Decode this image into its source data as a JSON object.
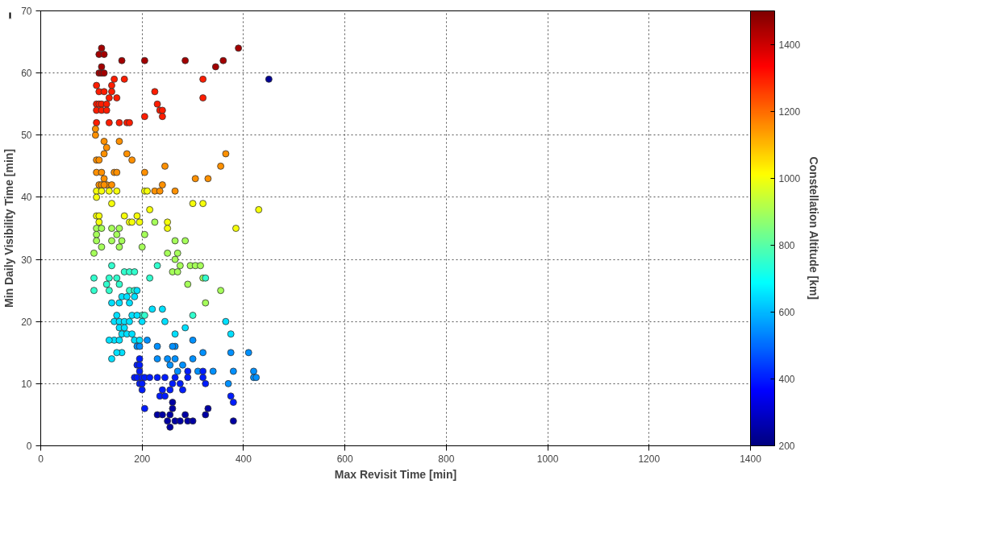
{
  "chart_data": {
    "type": "scatter",
    "xlabel": "Max Revisit Time [min]",
    "ylabel": "Min Daily Visibility Time [min]",
    "clabel": "Constellation Altitude [km]",
    "xlim": [
      0,
      1400
    ],
    "xticks": [
      0,
      200,
      400,
      600,
      800,
      1000,
      1200,
      1400
    ],
    "ylim": [
      0,
      70
    ],
    "yticks": [
      0,
      10,
      20,
      30,
      40,
      50,
      60,
      70
    ],
    "clim": [
      200,
      1500
    ],
    "cticks": [
      200,
      400,
      600,
      800,
      1000,
      1200,
      1400
    ],
    "grid": true,
    "marker": "circle",
    "series": [
      {
        "x": [
          115,
          120,
          125,
          115,
          120,
          125,
          160,
          205,
          285,
          360,
          390,
          345,
          120,
          450,
          110,
          115,
          125,
          135,
          145,
          140,
          140,
          165,
          110,
          115,
          120,
          130,
          110,
          120,
          130,
          150,
          110,
          135,
          155,
          170,
          175,
          205,
          225,
          230,
          235,
          240,
          240,
          320,
          320,
          108,
          108,
          125,
          155,
          130,
          170,
          180,
          110,
          115,
          125,
          110,
          120,
          145,
          150,
          205,
          365,
          355,
          245,
          305,
          330,
          125,
          130,
          115,
          120,
          125,
          140,
          240,
          225,
          235,
          265,
          205,
          110,
          120,
          135,
          150,
          210,
          110,
          140,
          300,
          320,
          430,
          110,
          115,
          165,
          190,
          195,
          215,
          250,
          250,
          385,
          115,
          175,
          180,
          225,
          110,
          120,
          140,
          155,
          110,
          150,
          205,
          110,
          140,
          160,
          265,
          285,
          120,
          155,
          200,
          270,
          105,
          250,
          265,
          275,
          295,
          305,
          315,
          260,
          270,
          290,
          320,
          355,
          325,
          105,
          105,
          140,
          135,
          150,
          130,
          135,
          155,
          165,
          175,
          185,
          175,
          185,
          200,
          205,
          230,
          215,
          300,
          325,
          140,
          155,
          160,
          175,
          170,
          185,
          190,
          150,
          145,
          155,
          165,
          175,
          180,
          190,
          200,
          155,
          165,
          160,
          170,
          180,
          145,
          135,
          155,
          185,
          195,
          140,
          160,
          150,
          220,
          240,
          245,
          285,
          265,
          365,
          375,
          190,
          195,
          210,
          230,
          265,
          260,
          300,
          320,
          375,
          230,
          250,
          265,
          255,
          280,
          270,
          300,
          310,
          340,
          410,
          420,
          420,
          425,
          370,
          380,
          195,
          190,
          195,
          185,
          190,
          200,
          205,
          195,
          195,
          200,
          215,
          230,
          245,
          240,
          265,
          275,
          290,
          320,
          325,
          320,
          375,
          380,
          260,
          255,
          280,
          235,
          245,
          200,
          205,
          290,
          230,
          240,
          250,
          255,
          255,
          260,
          265,
          275,
          285,
          290,
          300,
          325,
          330,
          380,
          260
        ],
        "values": [
          63,
          64,
          63,
          60,
          60,
          60,
          62,
          62,
          62,
          62,
          64,
          61,
          61,
          59,
          58,
          57,
          57,
          56,
          59,
          58,
          57,
          59,
          55,
          55,
          55,
          55,
          54,
          54,
          54,
          56,
          52,
          52,
          52,
          52,
          52,
          53,
          57,
          55,
          54,
          54,
          53,
          59,
          56,
          50,
          51,
          49,
          49,
          48,
          47,
          46,
          46,
          46,
          47,
          44,
          44,
          44,
          44,
          44,
          47,
          45,
          45,
          43,
          43,
          43,
          42,
          42,
          42,
          42,
          42,
          42,
          41,
          41,
          41,
          41,
          41,
          41,
          41,
          41,
          41,
          40,
          39,
          39,
          39,
          38,
          37,
          37,
          37,
          37,
          36,
          38,
          36,
          35,
          35,
          36,
          36,
          36,
          36,
          35,
          35,
          35,
          35,
          34,
          34,
          34,
          33,
          33,
          33,
          33,
          33,
          32,
          32,
          32,
          31,
          31,
          31,
          30,
          29,
          29,
          29,
          29,
          28,
          28,
          26,
          27,
          25,
          23,
          27,
          25,
          29,
          27,
          27,
          26,
          25,
          26,
          28,
          28,
          28,
          25,
          25,
          21,
          21,
          29,
          27,
          21,
          27,
          23,
          23,
          24,
          23,
          24,
          24,
          25,
          21,
          20,
          20,
          20,
          20,
          21,
          21,
          20,
          19,
          19,
          18,
          18,
          18,
          17,
          17,
          17,
          17,
          17,
          14,
          15,
          15,
          22,
          22,
          20,
          19,
          18,
          20,
          18,
          16,
          16,
          17,
          16,
          16,
          16,
          17,
          15,
          15,
          14,
          14,
          14,
          13,
          13,
          12,
          14,
          12,
          12,
          15,
          12,
          11,
          11,
          10,
          12,
          14,
          13,
          13,
          11,
          11,
          11,
          11,
          12,
          10,
          10,
          11,
          11,
          11,
          9,
          11,
          10,
          11,
          11,
          10,
          12,
          8,
          7,
          10,
          9,
          9,
          8,
          8,
          9,
          6,
          12,
          5,
          5,
          4,
          3,
          5,
          6,
          4,
          4,
          5,
          4,
          4,
          5,
          6,
          4,
          7
        ],
        "cvalues": [
          1450,
          1450,
          1450,
          1450,
          1450,
          1450,
          1450,
          1450,
          1450,
          1450,
          1450,
          1450,
          1450,
          230,
          1300,
          1300,
          1300,
          1300,
          1300,
          1300,
          1300,
          1300,
          1300,
          1300,
          1300,
          1300,
          1300,
          1300,
          1300,
          1300,
          1300,
          1300,
          1300,
          1300,
          1300,
          1300,
          1300,
          1300,
          1300,
          1300,
          1300,
          1300,
          1300,
          1150,
          1150,
          1150,
          1150,
          1150,
          1150,
          1150,
          1150,
          1150,
          1150,
          1150,
          1150,
          1150,
          1150,
          1150,
          1150,
          1150,
          1150,
          1150,
          1150,
          1150,
          1150,
          1150,
          1150,
          1150,
          1150,
          1150,
          1150,
          1150,
          1150,
          1000,
          1000,
          1000,
          1000,
          1000,
          1000,
          1000,
          1000,
          1000,
          1000,
          1000,
          1000,
          1000,
          1000,
          1000,
          1000,
          1000,
          1000,
          1000,
          1000,
          1000,
          1000,
          1000,
          900,
          900,
          900,
          900,
          900,
          900,
          900,
          900,
          900,
          900,
          900,
          900,
          900,
          900,
          900,
          900,
          900,
          900,
          900,
          900,
          900,
          900,
          900,
          900,
          900,
          900,
          900,
          900,
          900,
          900,
          750,
          750,
          750,
          750,
          750,
          750,
          750,
          750,
          750,
          750,
          750,
          750,
          750,
          750,
          750,
          750,
          750,
          750,
          750,
          650,
          650,
          650,
          650,
          650,
          650,
          650,
          650,
          650,
          650,
          650,
          650,
          650,
          650,
          650,
          650,
          650,
          650,
          650,
          650,
          650,
          650,
          650,
          650,
          650,
          650,
          650,
          650,
          650,
          650,
          650,
          650,
          650,
          650,
          650,
          550,
          550,
          550,
          550,
          550,
          550,
          550,
          550,
          550,
          550,
          550,
          550,
          550,
          550,
          550,
          550,
          550,
          550,
          550,
          550,
          550,
          550,
          550,
          550,
          400,
          400,
          400,
          400,
          400,
          400,
          400,
          400,
          400,
          400,
          400,
          400,
          400,
          400,
          400,
          400,
          400,
          400,
          400,
          400,
          400,
          400,
          400,
          400,
          400,
          400,
          400,
          400,
          400,
          400,
          250,
          250,
          250,
          250,
          250,
          250,
          250,
          250,
          250,
          250,
          250,
          250,
          250,
          250,
          250
        ]
      }
    ]
  }
}
